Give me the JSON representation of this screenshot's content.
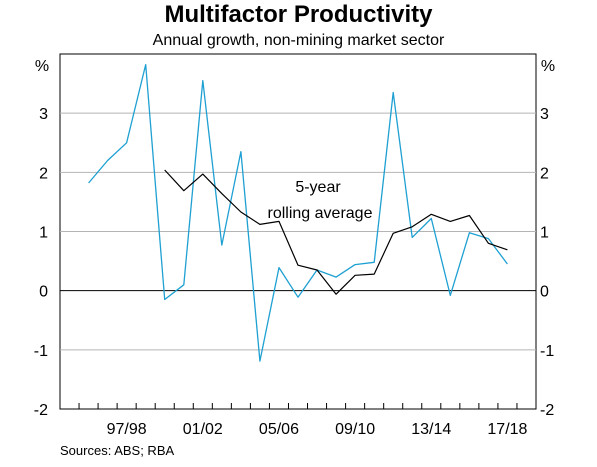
{
  "chart_data": {
    "type": "line",
    "title": "Multifactor Productivity",
    "subtitle": "Annual growth, non-mining market sector",
    "y_unit_left": "%",
    "y_unit_right": "%",
    "ylim": [
      -2,
      4
    ],
    "yticks": [
      -2,
      -1,
      0,
      1,
      2,
      3
    ],
    "x": [
      "1994/95",
      "1995/96",
      "1996/97",
      "1997/98",
      "1998/99",
      "1999/00",
      "2000/01",
      "2001/02",
      "2002/03",
      "2003/04",
      "2004/05",
      "2005/06",
      "2006/07",
      "2007/08",
      "2008/09",
      "2009/10",
      "2010/11",
      "2011/12",
      "2012/13",
      "2013/14",
      "2014/15",
      "2015/16",
      "2016/17",
      "2017/18",
      "2018/19"
    ],
    "x_tick_labels": [
      "97/98",
      "01/02",
      "05/06",
      "09/10",
      "13/14",
      "17/18"
    ],
    "series": [
      {
        "key": "annual",
        "color": "#1ea0d2",
        "values": [
          null,
          1.82,
          2.2,
          2.5,
          3.82,
          -0.15,
          0.1,
          3.55,
          0.77,
          2.35,
          -1.19,
          0.39,
          -0.11,
          0.35,
          0.23,
          0.44,
          0.48,
          3.35,
          0.9,
          1.22,
          -0.08,
          0.98,
          0.88,
          0.45,
          null
        ]
      },
      {
        "key": "rolling",
        "color": "#000000",
        "values": [
          null,
          null,
          null,
          null,
          null,
          2.04,
          1.69,
          1.97,
          1.64,
          1.33,
          1.12,
          1.17,
          0.43,
          0.35,
          -0.06,
          0.26,
          0.28,
          0.97,
          1.08,
          1.29,
          1.17,
          1.27,
          0.8,
          0.69,
          null
        ]
      }
    ],
    "annotation": [
      "5-year",
      "rolling average"
    ],
    "source": "Sources:   ABS; RBA",
    "zero_line": true,
    "grid": true
  }
}
